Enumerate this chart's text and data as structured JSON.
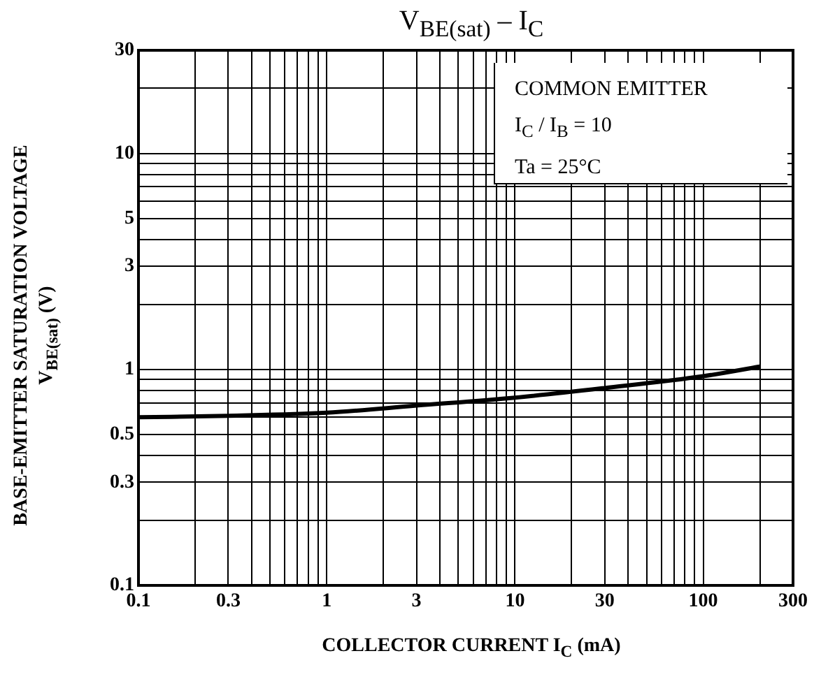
{
  "chart_data": {
    "type": "line",
    "title": "V$_{BE(sat)}$ – I$_{C}$",
    "xlabel": "COLLECTOR CURRENT  I$_{C}$  (mA)",
    "ylabel": "BASE-EMITTER SATURATION VOLTAGE  V$_{BE(sat)}$  (V)",
    "annotations": [
      "COMMON EMITTER",
      "I$_{C}$ / I$_{B}$ = 10",
      "Ta = 25°C"
    ],
    "x": [
      0.1,
      0.3,
      1,
      3,
      10,
      30,
      100,
      200
    ],
    "series": [
      {
        "color": "#000000",
        "values": [
          0.6,
          0.61,
          0.63,
          0.68,
          0.74,
          0.82,
          0.93,
          1.03
        ]
      }
    ],
    "log": "xy",
    "grid": true,
    "marker": "none",
    "line_style": "solid",
    "xlim": [
      0.1,
      300
    ],
    "ylim": [
      0.1,
      30
    ],
    "xticks": [
      0.1,
      {
        "value": 0.2,
        "label": null
      },
      0.3,
      {
        "value": 0.4,
        "label": null
      },
      {
        "value": 0.5,
        "label": null
      },
      {
        "value": 0.6,
        "label": null
      },
      {
        "value": 0.7,
        "label": null
      },
      {
        "value": 0.8,
        "label": null
      },
      {
        "value": 0.9,
        "label": null
      },
      1,
      {
        "value": 2,
        "label": null
      },
      3,
      {
        "value": 4,
        "label": null
      },
      {
        "value": 5,
        "label": null
      },
      {
        "value": 6,
        "label": null
      },
      {
        "value": 7,
        "label": null
      },
      {
        "value": 8,
        "label": null
      },
      {
        "value": 9,
        "label": null
      },
      10,
      {
        "value": 20,
        "label": null
      },
      30,
      {
        "value": 40,
        "label": null
      },
      {
        "value": 50,
        "label": null
      },
      {
        "value": 60,
        "label": null
      },
      {
        "value": 70,
        "label": null
      },
      {
        "value": 80,
        "label": null
      },
      {
        "value": 90,
        "label": null
      },
      100,
      {
        "value": 200,
        "label": null
      },
      300
    ],
    "yticks": [
      0.1,
      {
        "value": 0.2,
        "label": null
      },
      0.3,
      {
        "value": 0.4,
        "label": null
      },
      0.5,
      {
        "value": 0.6,
        "label": null
      },
      {
        "value": 0.7,
        "label": null
      },
      {
        "value": 0.8,
        "label": null
      },
      {
        "value": 0.9,
        "label": null
      },
      1,
      {
        "value": 2,
        "label": null
      },
      3,
      {
        "value": 4,
        "label": null
      },
      5,
      {
        "value": 6,
        "label": null
      },
      {
        "value": 7,
        "label": null
      },
      {
        "value": 8,
        "label": null
      },
      {
        "value": 9,
        "label": null
      },
      10,
      {
        "value": 20,
        "label": null
      },
      30
    ]
  }
}
